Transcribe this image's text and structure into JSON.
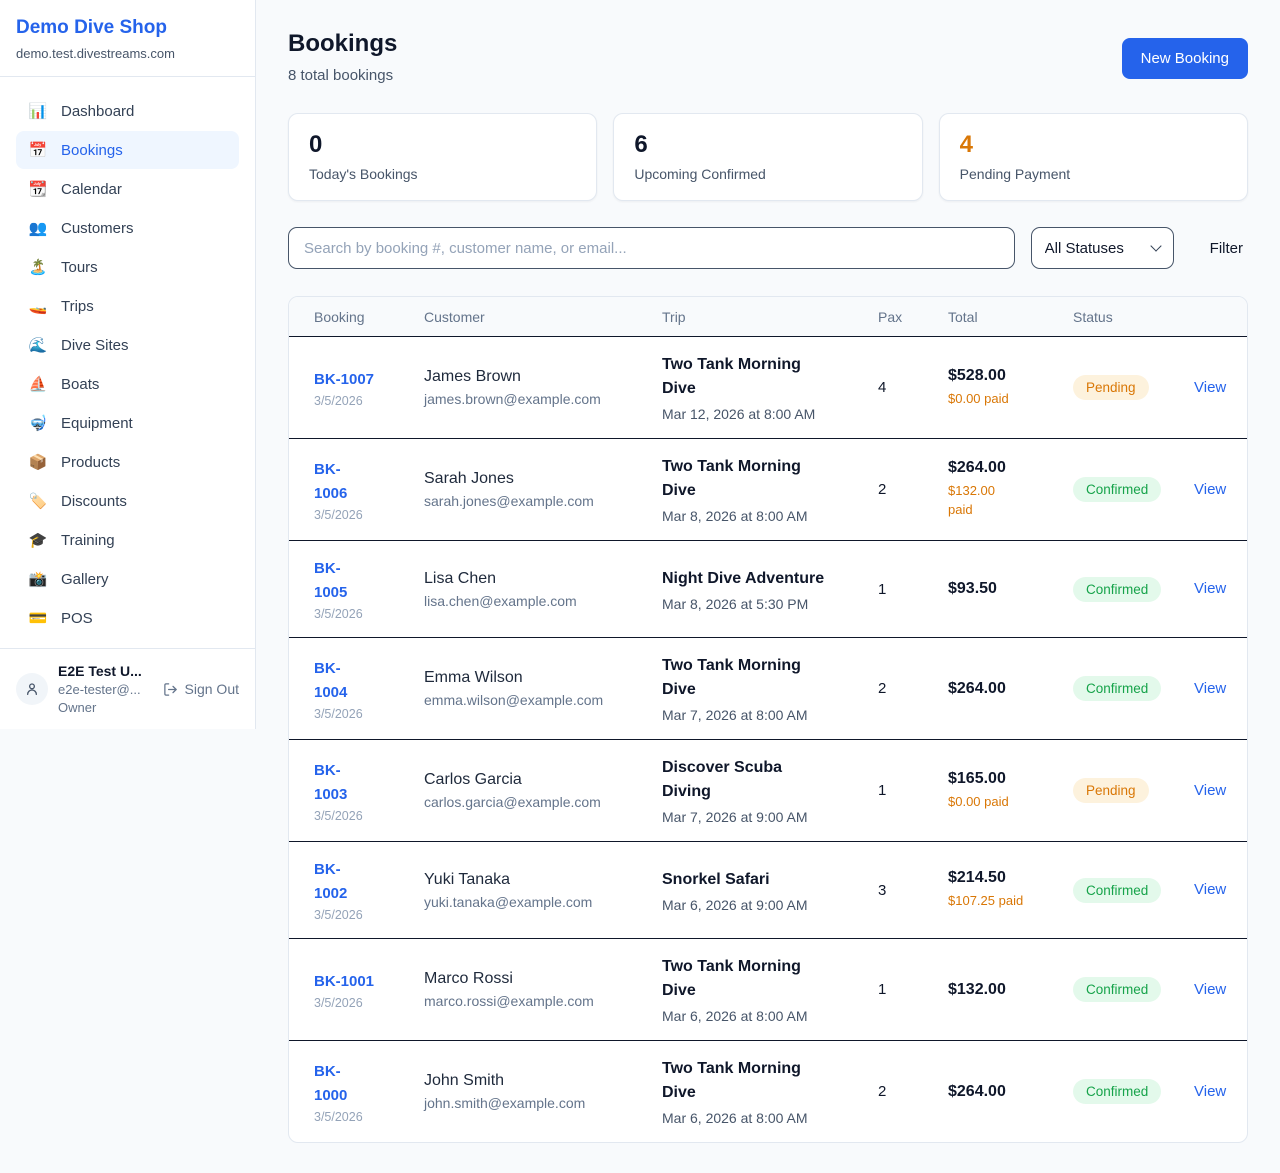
{
  "brand": {
    "name": "Demo Dive Shop",
    "domain": "demo.test.divestreams.com"
  },
  "sidebar": {
    "items": [
      {
        "label": "Dashboard",
        "icon": "📊",
        "icon_name": "bar-chart-icon",
        "active": false
      },
      {
        "label": "Bookings",
        "icon": "📅",
        "icon_name": "calendar-icon",
        "active": true
      },
      {
        "label": "Calendar",
        "icon": "📆",
        "icon_name": "tear-off-calendar-icon",
        "active": false
      },
      {
        "label": "Customers",
        "icon": "👥",
        "icon_name": "users-icon",
        "active": false
      },
      {
        "label": "Tours",
        "icon": "🏝️",
        "icon_name": "island-icon",
        "active": false
      },
      {
        "label": "Trips",
        "icon": "🚤",
        "icon_name": "speedboat-icon",
        "active": false
      },
      {
        "label": "Dive Sites",
        "icon": "🌊",
        "icon_name": "wave-icon",
        "active": false
      },
      {
        "label": "Boats",
        "icon": "⛵",
        "icon_name": "sailboat-icon",
        "active": false
      },
      {
        "label": "Equipment",
        "icon": "🤿",
        "icon_name": "diving-mask-icon",
        "active": false
      },
      {
        "label": "Products",
        "icon": "📦",
        "icon_name": "package-icon",
        "active": false
      },
      {
        "label": "Discounts",
        "icon": "🏷️",
        "icon_name": "tag-icon",
        "active": false
      },
      {
        "label": "Training",
        "icon": "🎓",
        "icon_name": "graduation-cap-icon",
        "active": false
      },
      {
        "label": "Gallery",
        "icon": "📸",
        "icon_name": "camera-icon",
        "active": false
      },
      {
        "label": "POS",
        "icon": "💳",
        "icon_name": "credit-card-icon",
        "active": false
      }
    ]
  },
  "user": {
    "name": "E2E Test U...",
    "email": "e2e-tester@...",
    "role": "Owner",
    "sign_out_label": "Sign Out"
  },
  "header": {
    "title": "Bookings",
    "subtitle": "8 total bookings",
    "new_booking_label": "New Booking"
  },
  "stats": [
    {
      "value": "0",
      "label": "Today's Bookings"
    },
    {
      "value": "6",
      "label": "Upcoming Confirmed"
    },
    {
      "value": "4",
      "label": "Pending Payment"
    }
  ],
  "filters": {
    "search_placeholder": "Search by booking #, customer name, or email...",
    "status_select": "All Statuses",
    "filter_label": "Filter"
  },
  "table": {
    "headers": [
      "Booking",
      "Customer",
      "Trip",
      "Pax",
      "Total",
      "Status",
      ""
    ],
    "rows": [
      {
        "id_lines": [
          "BK-1007"
        ],
        "date": "3/5/2026",
        "customer_name": "James Brown",
        "customer_email": "james.brown@example.com",
        "trip_lines": [
          "Two Tank Morning",
          "Dive"
        ],
        "trip_datetime": "Mar 12, 2026 at 8:00 AM",
        "pax": "4",
        "total": "$528.00",
        "paid_lines": [
          "$0.00 paid"
        ],
        "status": "Pending",
        "view_label": "View"
      },
      {
        "id_lines": [
          "BK-",
          "1006"
        ],
        "date": "3/5/2026",
        "customer_name": "Sarah Jones",
        "customer_email": "sarah.jones@example.com",
        "trip_lines": [
          "Two Tank Morning",
          "Dive"
        ],
        "trip_datetime": "Mar 8, 2026 at 8:00 AM",
        "pax": "2",
        "total": "$264.00",
        "paid_lines": [
          "$132.00",
          "paid"
        ],
        "status": "Confirmed",
        "view_label": "View"
      },
      {
        "id_lines": [
          "BK-",
          "1005"
        ],
        "date": "3/5/2026",
        "customer_name": "Lisa Chen",
        "customer_email": "lisa.chen@example.com",
        "trip_lines": [
          "Night Dive Adventure"
        ],
        "trip_datetime": "Mar 8, 2026 at 5:30 PM",
        "pax": "1",
        "total": "$93.50",
        "paid_lines": [],
        "status": "Confirmed",
        "view_label": "View"
      },
      {
        "id_lines": [
          "BK-",
          "1004"
        ],
        "date": "3/5/2026",
        "customer_name": "Emma Wilson",
        "customer_email": "emma.wilson@example.com",
        "trip_lines": [
          "Two Tank Morning",
          "Dive"
        ],
        "trip_datetime": "Mar 7, 2026 at 8:00 AM",
        "pax": "2",
        "total": "$264.00",
        "paid_lines": [],
        "status": "Confirmed",
        "view_label": "View"
      },
      {
        "id_lines": [
          "BK-",
          "1003"
        ],
        "date": "3/5/2026",
        "customer_name": "Carlos Garcia",
        "customer_email": "carlos.garcia@example.com",
        "trip_lines": [
          "Discover Scuba",
          "Diving"
        ],
        "trip_datetime": "Mar 7, 2026 at 9:00 AM",
        "pax": "1",
        "total": "$165.00",
        "paid_lines": [
          "$0.00 paid"
        ],
        "status": "Pending",
        "view_label": "View"
      },
      {
        "id_lines": [
          "BK-",
          "1002"
        ],
        "date": "3/5/2026",
        "customer_name": "Yuki Tanaka",
        "customer_email": "yuki.tanaka@example.com",
        "trip_lines": [
          "Snorkel Safari"
        ],
        "trip_datetime": "Mar 6, 2026 at 9:00 AM",
        "pax": "3",
        "total": "$214.50",
        "paid_lines": [
          "$107.25 paid"
        ],
        "status": "Confirmed",
        "view_label": "View"
      },
      {
        "id_lines": [
          "BK-1001"
        ],
        "date": "3/5/2026",
        "customer_name": "Marco Rossi",
        "customer_email": "marco.rossi@example.com",
        "trip_lines": [
          "Two Tank Morning",
          "Dive"
        ],
        "trip_datetime": "Mar 6, 2026 at 8:00 AM",
        "pax": "1",
        "total": "$132.00",
        "paid_lines": [],
        "status": "Confirmed",
        "view_label": "View"
      },
      {
        "id_lines": [
          "BK-",
          "1000"
        ],
        "date": "3/5/2026",
        "customer_name": "John Smith",
        "customer_email": "john.smith@example.com",
        "trip_lines": [
          "Two Tank Morning",
          "Dive"
        ],
        "trip_datetime": "Mar 6, 2026 at 8:00 AM",
        "pax": "2",
        "total": "$264.00",
        "paid_lines": [],
        "status": "Confirmed",
        "view_label": "View"
      }
    ]
  },
  "colors": {
    "accent": "#2563eb",
    "page_background": "#f8fafc",
    "sidebar_active_bg": "#eff6ff",
    "pending_text": "#d97706",
    "pending_bg": "#fdf2dd",
    "confirmed_text": "#16a34a",
    "confirmed_bg": "#e3f9eb",
    "stat_orange": "#d97706",
    "row_divider": "#0f172a",
    "card_border": "#e2e8f0"
  }
}
